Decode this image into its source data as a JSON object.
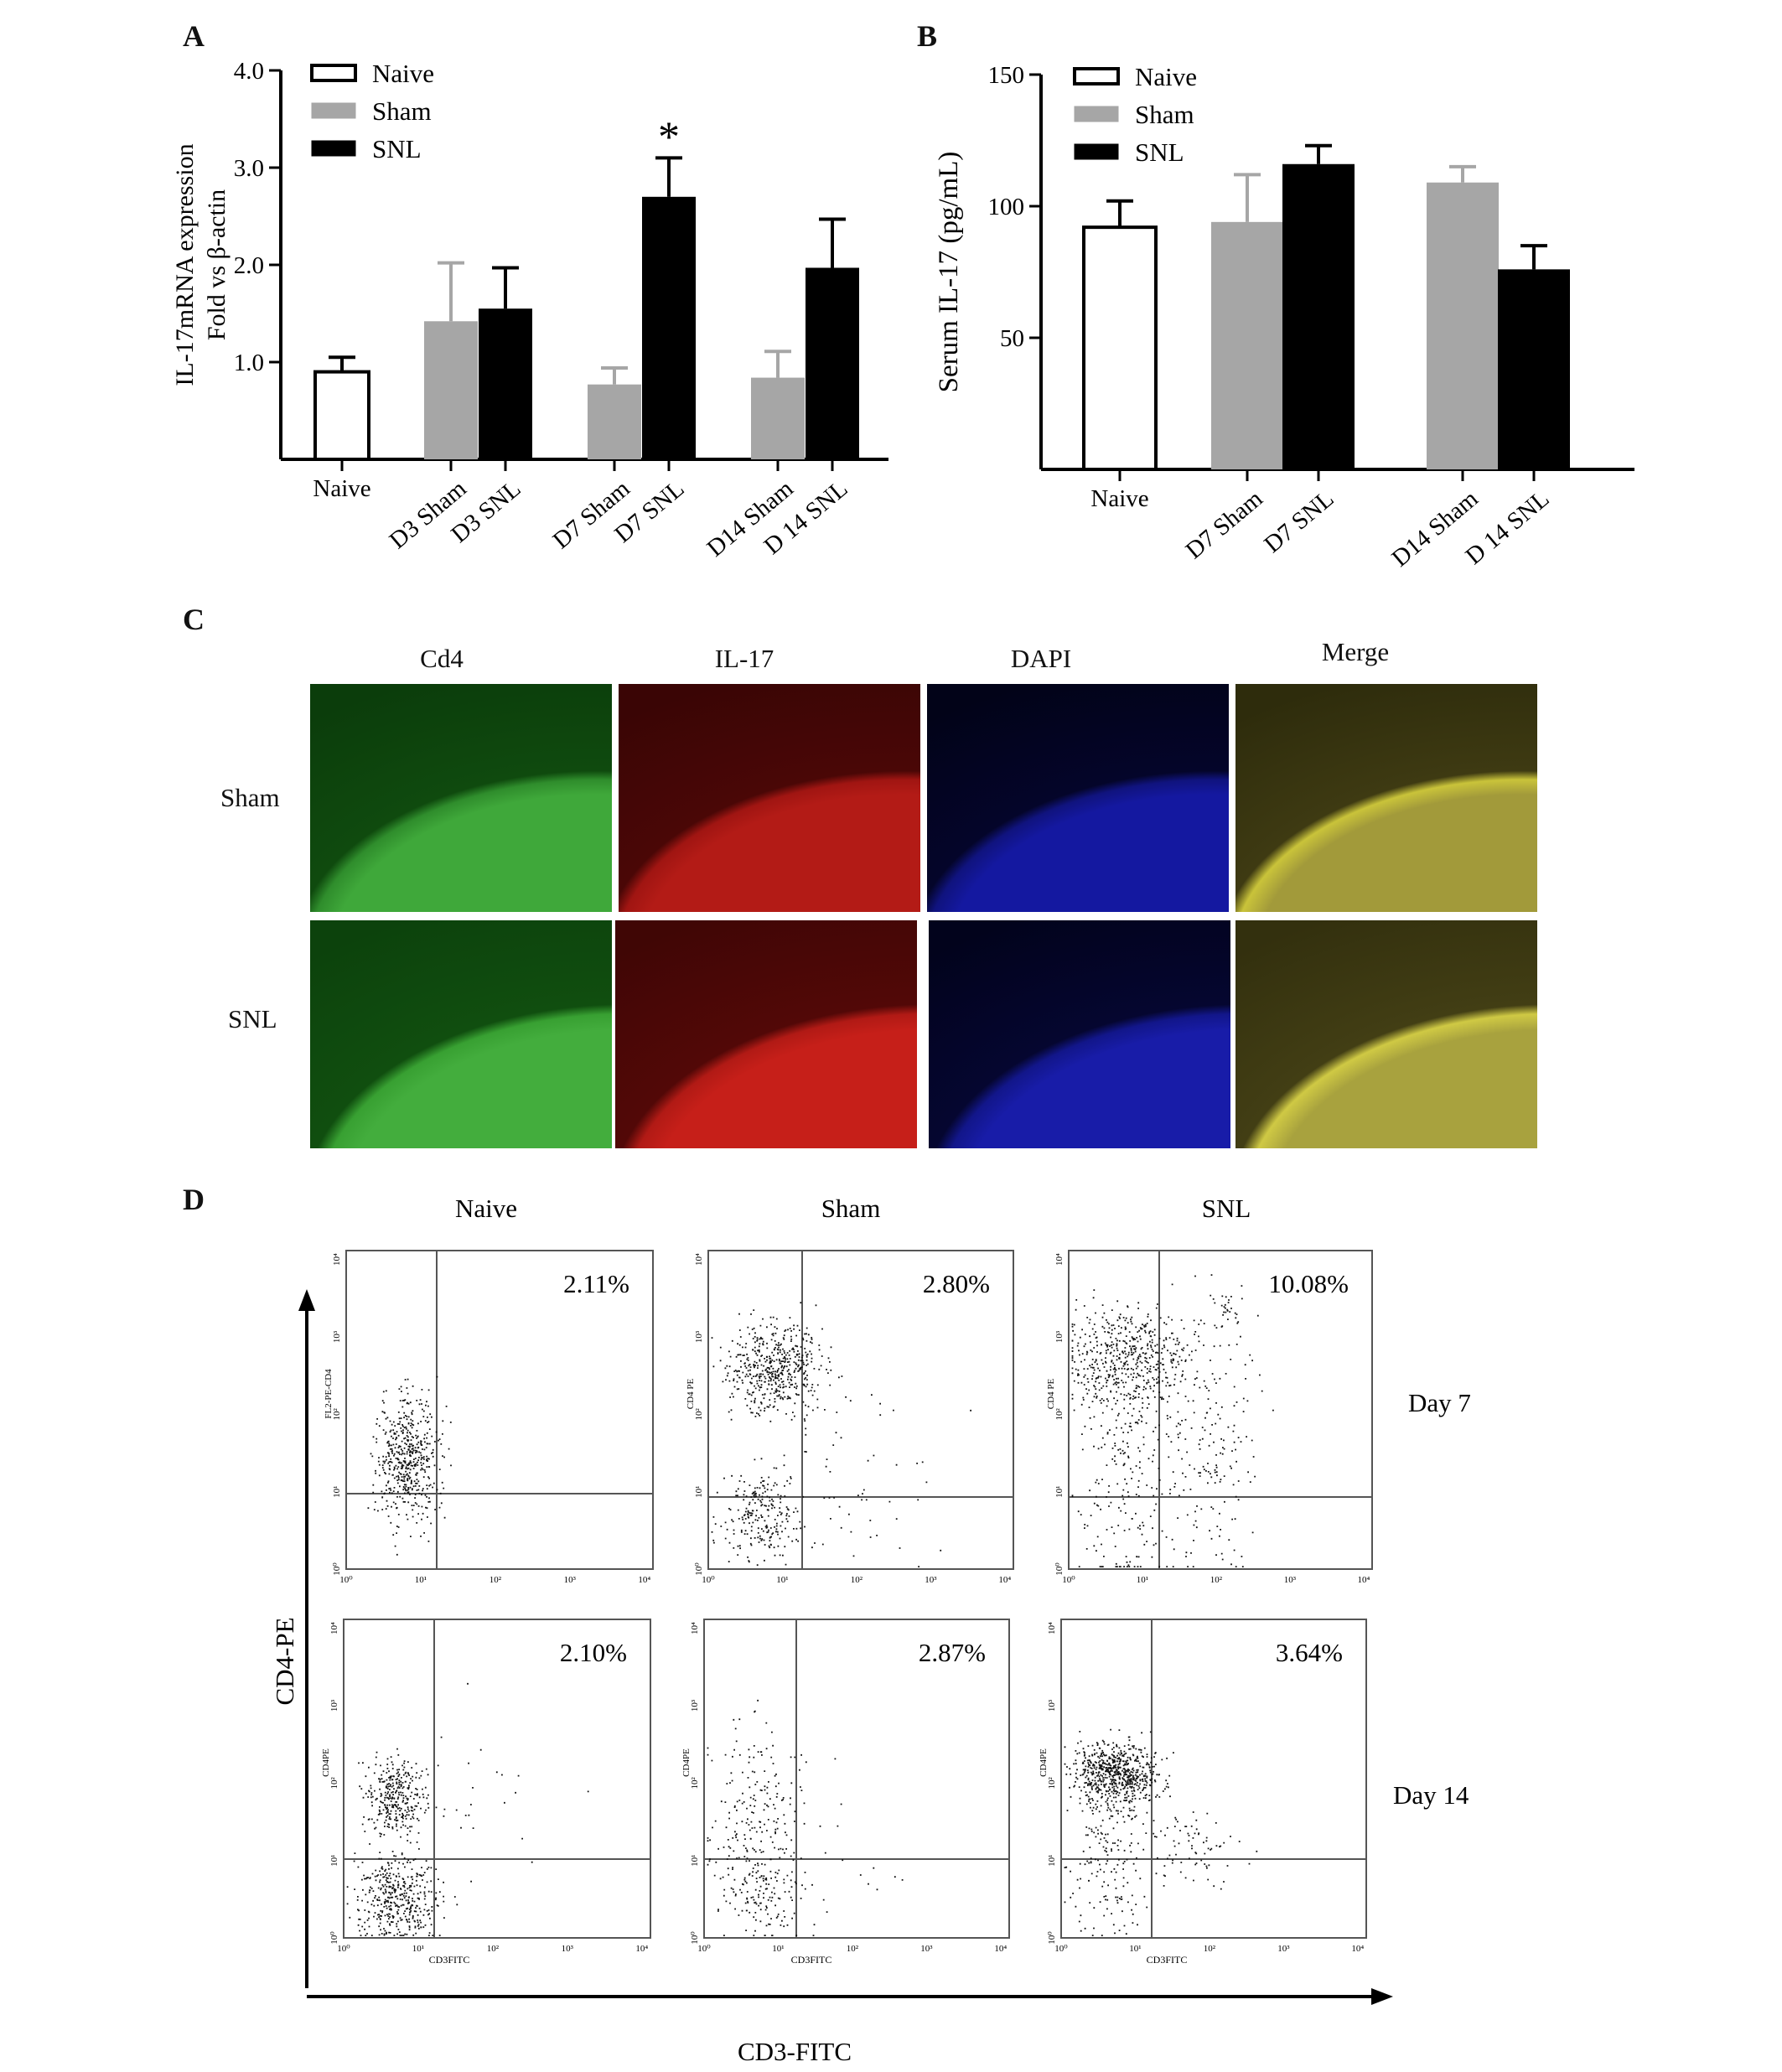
{
  "panel_a": {
    "letter": "A",
    "legend": [
      "Naive",
      "Sham",
      "SNL"
    ],
    "star": "*"
  },
  "panel_b": {
    "letter": "B",
    "legend": [
      "Naive",
      "Sham",
      "SNL"
    ]
  },
  "panel_c": {
    "letter": "C",
    "columns": [
      "Cd4",
      "IL-17",
      "DAPI",
      "Merge"
    ],
    "rows": [
      "Sham",
      "SNL"
    ]
  },
  "panel_d": {
    "letter": "D",
    "columns": [
      "Naive",
      "Sham",
      "SNL"
    ],
    "rows": [
      "Day 7",
      "Day 14"
    ],
    "y_axis_label": "CD4-PE",
    "x_axis_label": "CD3-FITC",
    "percentages": [
      [
        "2.11%",
        "2.80%",
        "10.08%"
      ],
      [
        "2.10%",
        "2.87%",
        "3.64%"
      ]
    ],
    "plot_ylabels": [
      [
        "FL2-PE-CD4",
        "CD4 PE",
        "CD4 PE"
      ],
      [
        "CD4PE",
        "CD4PE",
        "CD4PE"
      ]
    ],
    "plot_xlabel": "CD3FITC",
    "tick_labels": [
      "10⁰",
      "10¹",
      "10²",
      "10³",
      "10⁴"
    ]
  },
  "chart_data": [
    {
      "type": "bar",
      "title": "",
      "ylabel": "IL-17mRNA expression Fold vs β-actin",
      "xlabel": "",
      "ylim": [
        0,
        4.0
      ],
      "yticks": [
        "1.0",
        "2.0",
        "3.0",
        "4.0"
      ],
      "categories": [
        "Naive",
        "D3 Sham",
        "D3 SNL",
        "D7 Sham",
        "D7 SNL",
        "D14 Sham",
        "D 14 SNL"
      ],
      "groups": [
        "Naive",
        "Sham",
        "SNL",
        "Sham",
        "SNL",
        "Sham",
        "SNL"
      ],
      "values": [
        0.9,
        1.42,
        1.55,
        0.77,
        2.7,
        0.84,
        1.97
      ],
      "errors": [
        0.15,
        0.6,
        0.42,
        0.17,
        0.4,
        0.27,
        0.5
      ],
      "annotations": [
        {
          "category": "D7 SNL",
          "text": "*"
        }
      ],
      "legend_position": "top-left"
    },
    {
      "type": "bar",
      "title": "",
      "ylabel": "Serum IL-17 (pg/mL)",
      "xlabel": "",
      "ylim": [
        0,
        150
      ],
      "yticks": [
        "50",
        "100",
        "150"
      ],
      "categories": [
        "Naive",
        "D7 Sham",
        "D7 SNL",
        "D14 Sham",
        "D 14 SNL"
      ],
      "groups": [
        "Naive",
        "Sham",
        "SNL",
        "Sham",
        "SNL"
      ],
      "values": [
        92,
        94,
        116,
        109,
        76
      ],
      "errors": [
        10,
        18,
        7,
        6,
        9
      ],
      "legend_position": "top-left"
    }
  ]
}
